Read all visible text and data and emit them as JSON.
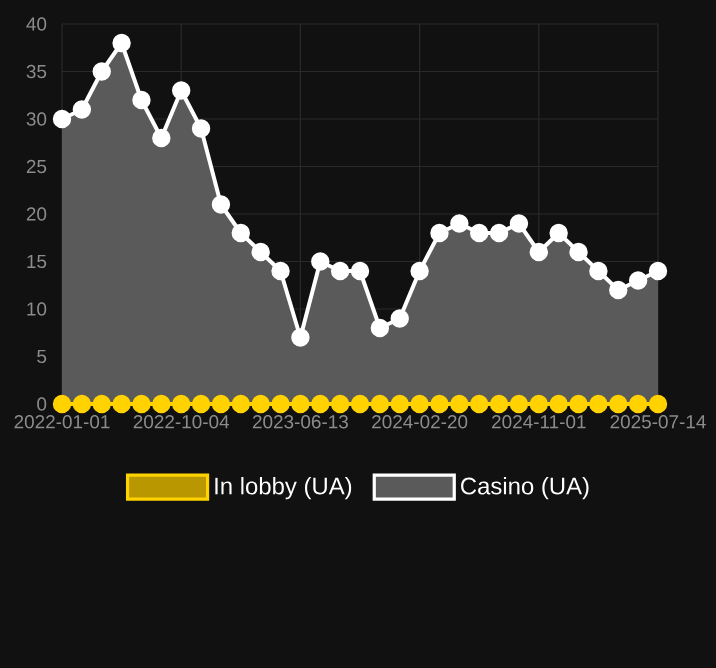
{
  "chart_data": {
    "type": "area",
    "categories": [
      "2022-01-01",
      null,
      null,
      null,
      null,
      null,
      "2022-10-04",
      null,
      null,
      null,
      null,
      null,
      "2023-06-13",
      null,
      null,
      null,
      null,
      null,
      "2024-02-20",
      null,
      null,
      null,
      null,
      null,
      "2024-11-01",
      null,
      null,
      null,
      null,
      null,
      "2025-07-14"
    ],
    "series": [
      {
        "name": "In lobby (UA)",
        "type": "line",
        "color": "#ffd200",
        "values": [
          0,
          0,
          0,
          0,
          0,
          0,
          0,
          0,
          0,
          0,
          0,
          0,
          0,
          0,
          0,
          0,
          0,
          0,
          0,
          0,
          0,
          0,
          0,
          0,
          0,
          0,
          0,
          0,
          0,
          0,
          0
        ]
      },
      {
        "name": "Casino (UA)",
        "color": "#ffffff",
        "values": [
          30,
          31,
          35,
          38,
          32,
          28,
          33,
          29,
          21,
          18,
          16,
          14,
          7,
          15,
          14,
          14,
          8,
          9,
          14,
          18,
          19,
          18,
          18,
          19,
          16,
          18,
          16,
          14,
          12,
          13,
          14
        ]
      }
    ],
    "ylim": [
      0,
      40
    ],
    "yticks": [
      0,
      5,
      10,
      15,
      20,
      25,
      30,
      35,
      40
    ],
    "grid": true,
    "legend": "bottom",
    "marker": "circle",
    "line_style": "solid"
  }
}
